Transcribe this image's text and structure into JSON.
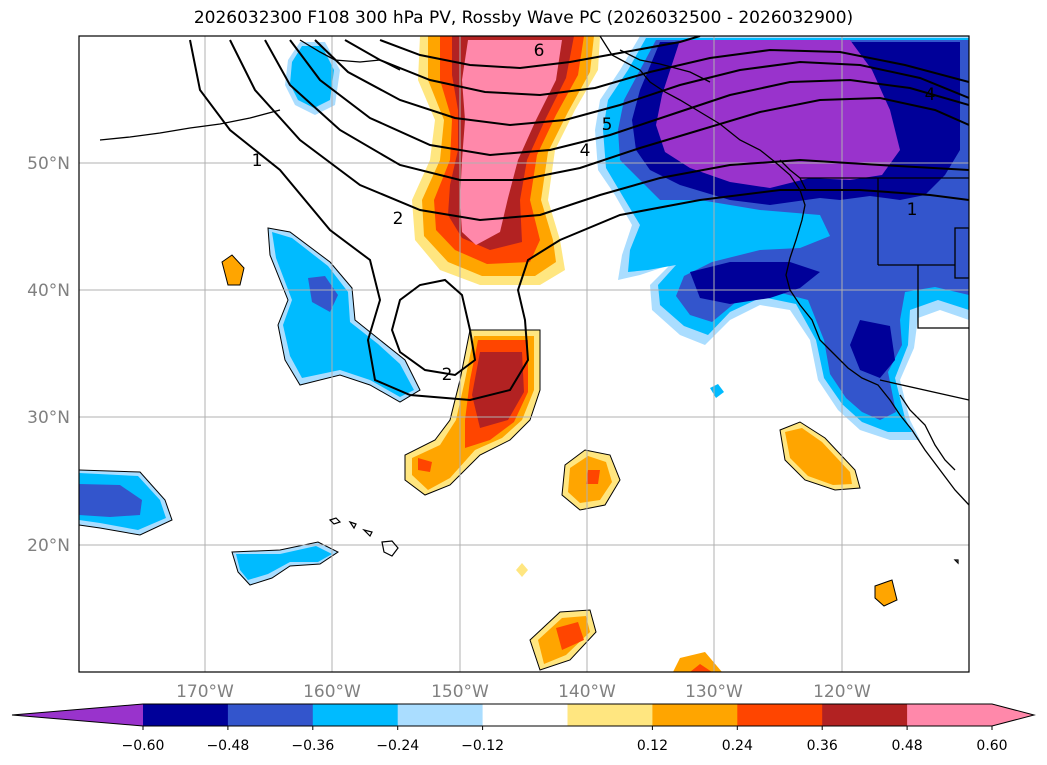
{
  "title": "2026032300 F108 300 hPa PV, Rossby Wave PC (2026032500 - 2026032900)",
  "map": {
    "lat_labels": [
      "50°N",
      "40°N",
      "30°N",
      "20°N"
    ],
    "lon_labels": [
      "170°W",
      "160°W",
      "150°W",
      "140°W",
      "130°W",
      "120°W"
    ]
  },
  "contour_labels": [
    "6",
    "5",
    "4",
    "4",
    "1",
    "2",
    "2",
    "1"
  ],
  "colorbar": {
    "ticks": [
      "−0.60",
      "−0.48",
      "−0.36",
      "−0.24",
      "−0.12",
      "0.12",
      "0.24",
      "0.36",
      "0.48",
      "0.60"
    ],
    "colors": [
      "#9933cc",
      "#000099",
      "#3355cc",
      "#00bbff",
      "#aaddff",
      "#ffffff",
      "#ffe680",
      "#ffa500",
      "#ff4500",
      "#b22222",
      "#ff88aa",
      "#ff88aa"
    ]
  }
}
